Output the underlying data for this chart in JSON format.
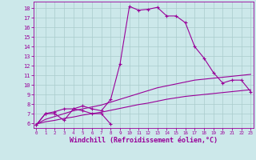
{
  "background_color": "#cce8ea",
  "line_color": "#990099",
  "grid_color": "#aacccc",
  "xlabel": "Windchill (Refroidissement éolien,°C)",
  "ylabel_values": [
    6,
    7,
    8,
    9,
    10,
    11,
    12,
    13,
    14,
    15,
    16,
    17,
    18
  ],
  "xlabel_values": [
    0,
    1,
    2,
    3,
    4,
    5,
    6,
    7,
    8,
    9,
    10,
    11,
    12,
    13,
    14,
    15,
    16,
    17,
    18,
    19,
    20,
    21,
    22,
    23
  ],
  "xlim": [
    -0.3,
    23.3
  ],
  "ylim": [
    5.5,
    18.7
  ],
  "series1_x": [
    0,
    1,
    2,
    3,
    4,
    5,
    6,
    7,
    8
  ],
  "series1_y": [
    5.8,
    7.0,
    7.0,
    6.3,
    7.5,
    7.3,
    7.0,
    7.0,
    5.9
  ],
  "series2_x": [
    0,
    1,
    2,
    3,
    4,
    5,
    6,
    7,
    8,
    9,
    10,
    11,
    12,
    13,
    14,
    15,
    16,
    17,
    18,
    19,
    20,
    21,
    22,
    23
  ],
  "series2_y": [
    5.8,
    7.0,
    7.2,
    7.5,
    7.5,
    7.8,
    7.5,
    7.3,
    8.5,
    12.2,
    18.2,
    17.8,
    17.9,
    18.1,
    17.2,
    17.2,
    16.5,
    14.0,
    12.8,
    11.3,
    10.2,
    10.5,
    10.5,
    9.3
  ],
  "series3_x": [
    0,
    1,
    2,
    3,
    4,
    5,
    6,
    7,
    8,
    9,
    10,
    11,
    12,
    13,
    14,
    15,
    16,
    17,
    18,
    19,
    20,
    21,
    22,
    23
  ],
  "series3_y": [
    5.9,
    6.4,
    6.7,
    7.0,
    7.3,
    7.5,
    7.7,
    7.9,
    8.2,
    8.5,
    8.8,
    9.1,
    9.4,
    9.7,
    9.9,
    10.1,
    10.3,
    10.5,
    10.6,
    10.7,
    10.8,
    10.9,
    11.0,
    11.1
  ],
  "series4_x": [
    0,
    1,
    2,
    3,
    4,
    5,
    6,
    7,
    8,
    9,
    10,
    11,
    12,
    13,
    14,
    15,
    16,
    17,
    18,
    19,
    20,
    21,
    22,
    23
  ],
  "series4_y": [
    5.9,
    6.15,
    6.3,
    6.5,
    6.65,
    6.85,
    7.0,
    7.15,
    7.35,
    7.55,
    7.75,
    7.95,
    8.1,
    8.3,
    8.5,
    8.65,
    8.8,
    8.9,
    9.0,
    9.1,
    9.2,
    9.3,
    9.4,
    9.5
  ]
}
